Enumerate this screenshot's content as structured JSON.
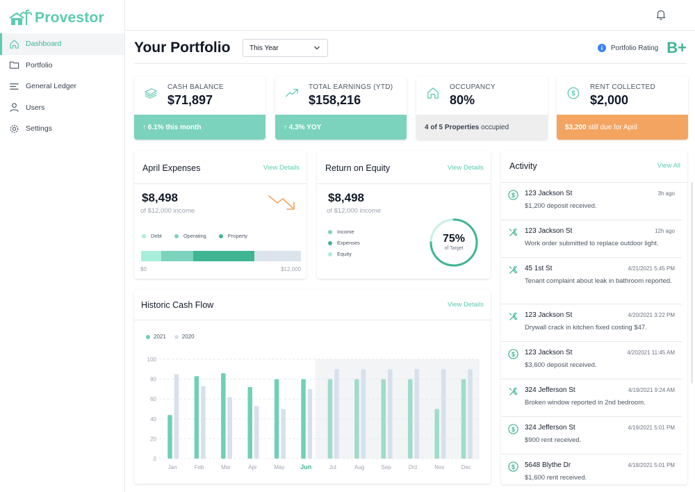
{
  "app": {
    "name": "Provestor"
  },
  "sidebar": {
    "items": [
      {
        "label": "Dashboard",
        "icon": "home-icon"
      },
      {
        "label": "Portfolio",
        "icon": "folder-icon"
      },
      {
        "label": "General Ledger",
        "icon": "ledger-icon"
      },
      {
        "label": "Users",
        "icon": "users-icon"
      },
      {
        "label": "Settings",
        "icon": "gear-icon"
      }
    ]
  },
  "header": {
    "title": "Your Portfolio",
    "period": "This Year",
    "rating_label": "Portfolio Rating",
    "rating_grade": "B+"
  },
  "stats": {
    "cash": {
      "label": "CASH BALANCE",
      "value": "$71,897",
      "foot": "↑ 6.1% this month"
    },
    "earnings": {
      "label": "TOTAL EARNINGS (YTD)",
      "value": "$158,216",
      "foot": "↑ 4.3% YOY"
    },
    "occupancy": {
      "label": "OCCUPANCY",
      "value": "80%",
      "foot_bold": "4 of 5 Properties",
      "foot_rest": " occupied"
    },
    "rent": {
      "label": "RENT COLLECTED",
      "value": "$2,000",
      "foot_bold": "$3,200",
      "foot_rest": " still due for April"
    }
  },
  "expenses": {
    "title": "April Expenses",
    "link": "View Details",
    "amount": "$8,498",
    "sub": "of $12,000 income",
    "legend": [
      "Debt",
      "Operating",
      "Property"
    ],
    "bar_min": "$0",
    "bar_max": "$12,000",
    "segments": [
      1500,
      2400,
      4598
    ],
    "total": 12000,
    "colors": [
      "#a8eedb",
      "#7bd3bd",
      "#3fb594",
      "#dbe3ec"
    ]
  },
  "roe": {
    "title": "Return on Equity",
    "link": "View Details",
    "amount": "$8,498",
    "sub": "of $12,000 income",
    "legend": [
      "Income",
      "Expenses",
      "Equity"
    ],
    "percent_label": "75%",
    "percent_sub": "of Target",
    "percent": 75
  },
  "cashflow": {
    "title": "Historic Cash Flow",
    "link": "View Details"
  },
  "chart_data": {
    "type": "bar",
    "title": "Historic Cash Flow",
    "categories": [
      "Jan",
      "Feb",
      "Mar",
      "Apr",
      "May",
      "Jun",
      "Jul",
      "Aug",
      "Sep",
      "Oct",
      "Nov",
      "Dec"
    ],
    "series": [
      {
        "name": "2021",
        "values": [
          44,
          83,
          86,
          72,
          80,
          80,
          80,
          80,
          80,
          80,
          50,
          80
        ]
      },
      {
        "name": "2020",
        "values": [
          85,
          73,
          62,
          53,
          50,
          70,
          90,
          90,
          90,
          90,
          90,
          90
        ]
      }
    ],
    "ylim": [
      0,
      100
    ],
    "yticks": [
      0,
      20,
      40,
      60,
      80,
      100
    ],
    "current_month": "Jun",
    "forecast_from": "Jul",
    "legend_position": "top-left",
    "grid": true
  },
  "activity": {
    "title": "Activity",
    "link": "View All",
    "items": [
      {
        "type": "dollar",
        "title": "123 Jackson St",
        "time": "3h ago",
        "desc": "$1,200 deposit received.",
        "h": 54
      },
      {
        "type": "tools",
        "title": "123 Jackson St",
        "time": "12h ago",
        "desc": "Work order submitted to replace outdoor light.",
        "h": 54
      },
      {
        "type": "tools",
        "title": "45 1st St",
        "time": "4/21/2021 5:45 PM",
        "desc": "Tenant complaint about leak in bathroom reported.",
        "h": 67
      },
      {
        "type": "tools",
        "title": "123 Jackson St",
        "time": "4/20/2021 3:22 PM",
        "desc": "Drywall crack in kitchen fixed costing $47.",
        "h": 54
      },
      {
        "type": "dollar",
        "title": "123 Jackson St",
        "time": "4/202021 11:45 AM",
        "desc": "$3,600 deposit received.",
        "h": 54
      },
      {
        "type": "tools",
        "title": "324 Jefferson St",
        "time": "4/19/2021 9:24 AM",
        "desc": "Broken window reported in 2nd bedroom.",
        "h": 54
      },
      {
        "type": "dollar",
        "title": "324 Jefferson St",
        "time": "4/19/2021 5:01 PM",
        "desc": "$900 rent received.",
        "h": 54
      },
      {
        "type": "dollar",
        "title": "5648 Blythe Dr",
        "time": "4/18/2021 5:01 PM",
        "desc": "$1,600 rent received.",
        "h": 54
      }
    ]
  },
  "colors": {
    "accent": "#5ccbb0",
    "accent_dark": "#3fb594",
    "series_2021": "#6fd0b6",
    "series_2020": "#d7e0ec",
    "orange": "#f4a461"
  }
}
